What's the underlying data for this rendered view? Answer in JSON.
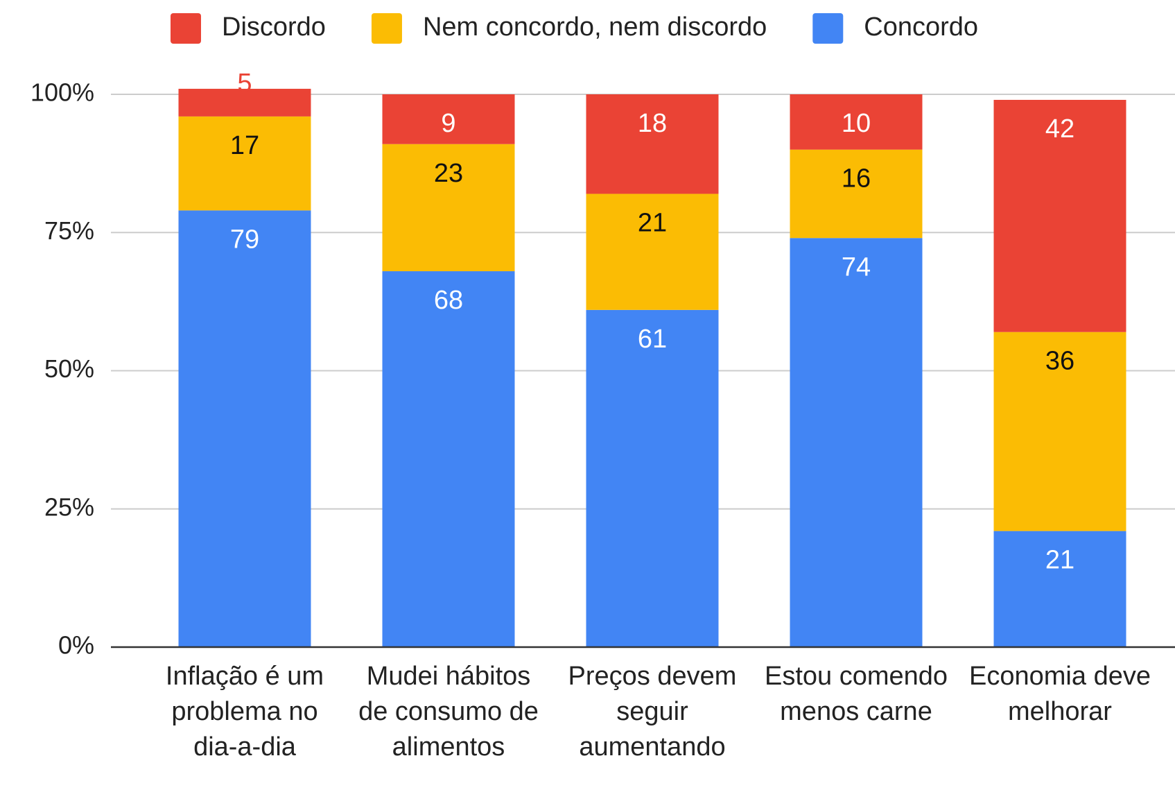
{
  "chart_data": {
    "type": "stacked_bar",
    "categories": [
      "Inflação é um problema no dia-a-dia",
      "Mudei hábitos de consumo de alimentos",
      "Preços devem seguir aumentando",
      "Estou comendo menos carne",
      "Economia deve melhorar"
    ],
    "series": [
      {
        "name": "Discordo",
        "color": "#ea4335",
        "values": [
          5,
          9,
          18,
          10,
          42
        ]
      },
      {
        "name": "Nem concordo, nem discordo",
        "color": "#fbbc04",
        "values": [
          17,
          23,
          21,
          16,
          36
        ]
      },
      {
        "name": "Concordo",
        "color": "#4285f4",
        "values": [
          79,
          68,
          61,
          74,
          21
        ]
      }
    ],
    "ylim": [
      0,
      100
    ],
    "yticks": [
      {
        "value": 0,
        "label": "0%"
      },
      {
        "value": 25,
        "label": "25%"
      },
      {
        "value": 50,
        "label": "50%"
      },
      {
        "value": 75,
        "label": "75%"
      },
      {
        "value": 100,
        "label": "100%"
      }
    ],
    "grid": true,
    "legend": "top"
  }
}
